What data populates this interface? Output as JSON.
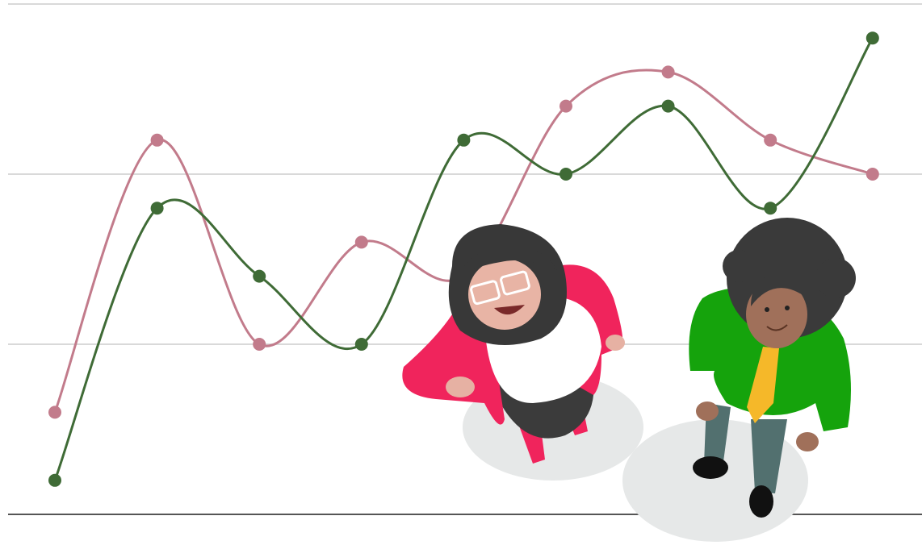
{
  "chart_data": {
    "type": "line",
    "categories": [
      null,
      null,
      null,
      null,
      null,
      null,
      null,
      null,
      null
    ],
    "series": [
      {
        "color": "#c27b8b",
        "values": [
          0.6,
          2.2,
          1.0,
          1.6,
          1.4,
          2.4,
          2.6,
          2.2,
          2.0
        ]
      },
      {
        "color": "#3f6b36",
        "values": [
          0.2,
          1.8,
          1.4,
          1.0,
          2.2,
          2.0,
          2.4,
          1.8,
          2.8
        ]
      }
    ],
    "ylim": [
      0,
      3
    ],
    "yticks": [
      0,
      1,
      2,
      3
    ],
    "grid": true
  }
}
